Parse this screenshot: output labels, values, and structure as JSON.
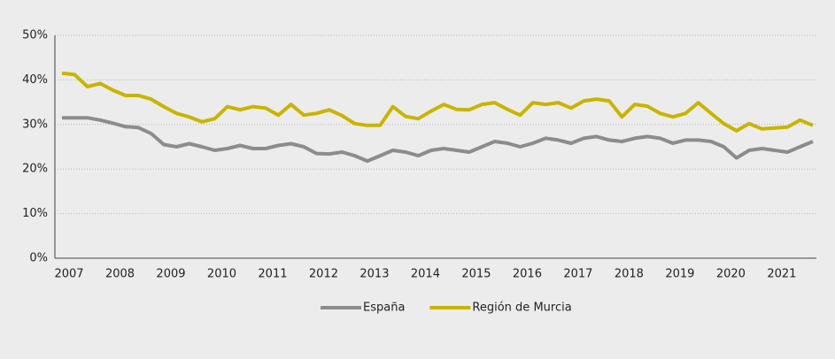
{
  "chart_data": {
    "type": "line",
    "categories": [
      "2007",
      null,
      null,
      null,
      "2008",
      null,
      null,
      null,
      "2009",
      null,
      null,
      null,
      "2010",
      null,
      null,
      null,
      "2011",
      null,
      null,
      null,
      "2012",
      null,
      null,
      null,
      "2013",
      null,
      null,
      null,
      "2014",
      null,
      null,
      null,
      "2015",
      null,
      null,
      null,
      "2016",
      null,
      null,
      null,
      "2017",
      null,
      null,
      null,
      "2018",
      null,
      null,
      null,
      "2019",
      null,
      null,
      null,
      "2020",
      null,
      null,
      null,
      "2021",
      null,
      null,
      null
    ],
    "series": [
      {
        "name": "España",
        "color": "#8c8c8c",
        "values": [
          31.5,
          31.5,
          31.5,
          31,
          30.3,
          29.5,
          29.3,
          28,
          25.5,
          25,
          25.7,
          25,
          24.2,
          24.6,
          25.3,
          24.6,
          24.6,
          25.3,
          25.7,
          25,
          23.5,
          23.4,
          23.8,
          23,
          21.8,
          23,
          24.2,
          23.8,
          23,
          24.2,
          24.6,
          24.2,
          23.8,
          25,
          26.2,
          25.8,
          25,
          25.8,
          26.9,
          26.5,
          25.8,
          26.9,
          27.3,
          26.5,
          26.2,
          26.9,
          27.3,
          26.9,
          25.8,
          26.5,
          26.5,
          26.2,
          25,
          22.5,
          24.2,
          24.6,
          24.2,
          23.8,
          25,
          26.2
        ]
      },
      {
        "name": "Región de Murcia",
        "color": "#c9b400",
        "values": [
          41.5,
          41.2,
          38.5,
          39.2,
          37.7,
          36.5,
          36.5,
          35.7,
          34,
          32.5,
          31.7,
          30.6,
          31.3,
          34,
          33.3,
          34,
          33.7,
          32.1,
          34.5,
          32.1,
          32.5,
          33.3,
          32,
          30.2,
          29.8,
          29.8,
          34,
          31.8,
          31.3,
          33,
          34.5,
          33.4,
          33.3,
          34.5,
          34.9,
          33.4,
          32.1,
          34.9,
          34.5,
          34.9,
          33.7,
          35.3,
          35.7,
          35.3,
          31.7,
          34.5,
          34.1,
          32.5,
          31.7,
          32.5,
          34.9,
          32.5,
          30.2,
          28.6,
          30.2,
          29,
          29.2,
          29.4,
          31,
          29.8
        ]
      }
    ],
    "ylim": [
      0,
      50
    ],
    "yticks": [
      {
        "value": 0,
        "label": "0%"
      },
      {
        "value": 10,
        "label": "10%"
      },
      {
        "value": 20,
        "label": "20%"
      },
      {
        "value": 30,
        "label": "30%"
      },
      {
        "value": 40,
        "label": "40%"
      },
      {
        "value": 50,
        "label": "50%"
      }
    ],
    "grid": true,
    "legend": "bottom"
  }
}
